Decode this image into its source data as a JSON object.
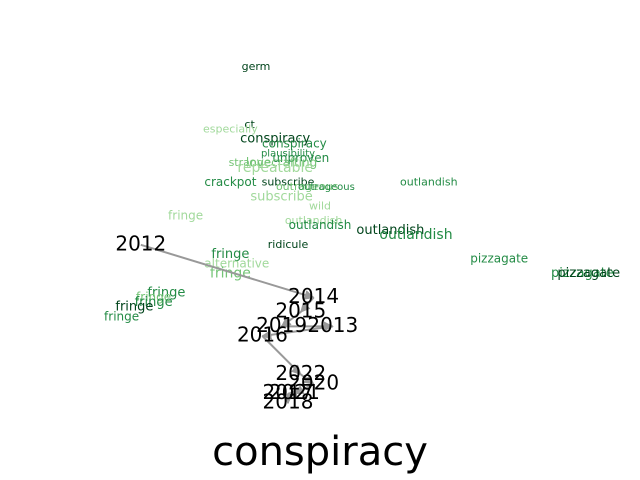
{
  "chart_data": {
    "type": "scatter",
    "title": "conspiracy",
    "colors": {
      "dark": "#00441b",
      "mid": "#238b45",
      "light": "#74c476",
      "pale": "#a1d99b",
      "arrow": "#999999",
      "year": "#000000"
    },
    "year_trajectory": [
      {
        "label": "2012",
        "x": 0.22,
        "y": 0.49
      },
      {
        "label": "2014",
        "x": 0.49,
        "y": 0.38
      },
      {
        "label": "2015",
        "x": 0.47,
        "y": 0.35
      },
      {
        "label": "2019",
        "x": 0.44,
        "y": 0.32
      },
      {
        "label": "2013",
        "x": 0.52,
        "y": 0.32
      },
      {
        "label": "2016",
        "x": 0.41,
        "y": 0.3
      },
      {
        "label": "2022",
        "x": 0.47,
        "y": 0.22
      },
      {
        "label": "2020",
        "x": 0.49,
        "y": 0.2
      },
      {
        "label": "2021",
        "x": 0.46,
        "y": 0.18
      },
      {
        "label": "2017",
        "x": 0.45,
        "y": 0.18
      },
      {
        "label": "2018",
        "x": 0.45,
        "y": 0.16
      }
    ],
    "words": [
      {
        "text": "germ",
        "x": 0.4,
        "y": 0.86,
        "shade": "dark",
        "size": 9
      },
      {
        "text": "ct",
        "x": 0.39,
        "y": 0.74,
        "shade": "dark",
        "size": 9
      },
      {
        "text": "especially",
        "x": 0.36,
        "y": 0.73,
        "shade": "pale",
        "size": 9
      },
      {
        "text": "conspiracy",
        "x": 0.43,
        "y": 0.71,
        "shade": "dark",
        "size": 11
      },
      {
        "text": "conspiracy",
        "x": 0.46,
        "y": 0.7,
        "shade": "mid",
        "size": 10
      },
      {
        "text": "plausibility",
        "x": 0.45,
        "y": 0.68,
        "shade": "mid",
        "size": 8
      },
      {
        "text": "unproven",
        "x": 0.47,
        "y": 0.67,
        "shade": "mid",
        "size": 10
      },
      {
        "text": "lovecrafting",
        "x": 0.44,
        "y": 0.66,
        "shade": "light",
        "size": 10
      },
      {
        "text": "strange",
        "x": 0.39,
        "y": 0.66,
        "shade": "light",
        "size": 9
      },
      {
        "text": "repeatable",
        "x": 0.43,
        "y": 0.65,
        "shade": "pale",
        "size": 12
      },
      {
        "text": "crackpot",
        "x": 0.36,
        "y": 0.62,
        "shade": "mid",
        "size": 10
      },
      {
        "text": "subscribe",
        "x": 0.45,
        "y": 0.62,
        "shade": "dark",
        "size": 9
      },
      {
        "text": "outrageous",
        "x": 0.48,
        "y": 0.61,
        "shade": "light",
        "size": 9
      },
      {
        "text": "outrageous",
        "x": 0.51,
        "y": 0.61,
        "shade": "mid",
        "size": 8
      },
      {
        "text": "outlandish",
        "x": 0.67,
        "y": 0.62,
        "shade": "mid",
        "size": 9
      },
      {
        "text": "subscribe",
        "x": 0.44,
        "y": 0.59,
        "shade": "pale",
        "size": 11
      },
      {
        "text": "wild",
        "x": 0.5,
        "y": 0.57,
        "shade": "pale",
        "size": 9
      },
      {
        "text": "fringe",
        "x": 0.29,
        "y": 0.55,
        "shade": "pale",
        "size": 10
      },
      {
        "text": "outlandish",
        "x": 0.49,
        "y": 0.54,
        "shade": "pale",
        "size": 9
      },
      {
        "text": "outlandish",
        "x": 0.5,
        "y": 0.53,
        "shade": "mid",
        "size": 10
      },
      {
        "text": "outlandish",
        "x": 0.61,
        "y": 0.52,
        "shade": "dark",
        "size": 11
      },
      {
        "text": "outlandish",
        "x": 0.65,
        "y": 0.51,
        "shade": "mid",
        "size": 12
      },
      {
        "text": "ridicule",
        "x": 0.45,
        "y": 0.49,
        "shade": "dark",
        "size": 9
      },
      {
        "text": "fringe",
        "x": 0.36,
        "y": 0.47,
        "shade": "mid",
        "size": 11
      },
      {
        "text": "alternative",
        "x": 0.37,
        "y": 0.45,
        "shade": "pale",
        "size": 10
      },
      {
        "text": "fringe",
        "x": 0.36,
        "y": 0.43,
        "shade": "light",
        "size": 12
      },
      {
        "text": "pizzagate",
        "x": 0.78,
        "y": 0.46,
        "shade": "mid",
        "size": 10
      },
      {
        "text": "pizzagate",
        "x": 0.91,
        "y": 0.43,
        "shade": "mid",
        "size": 11
      },
      {
        "text": "pizzagate",
        "x": 0.92,
        "y": 0.43,
        "shade": "dark",
        "size": 11
      },
      {
        "text": "fringe",
        "x": 0.26,
        "y": 0.39,
        "shade": "mid",
        "size": 11
      },
      {
        "text": "fringe",
        "x": 0.24,
        "y": 0.38,
        "shade": "light",
        "size": 10
      },
      {
        "text": "fringe",
        "x": 0.24,
        "y": 0.37,
        "shade": "mid",
        "size": 11
      },
      {
        "text": "fringe",
        "x": 0.21,
        "y": 0.36,
        "shade": "dark",
        "size": 11
      },
      {
        "text": "fringe",
        "x": 0.19,
        "y": 0.34,
        "shade": "mid",
        "size": 10
      }
    ]
  }
}
